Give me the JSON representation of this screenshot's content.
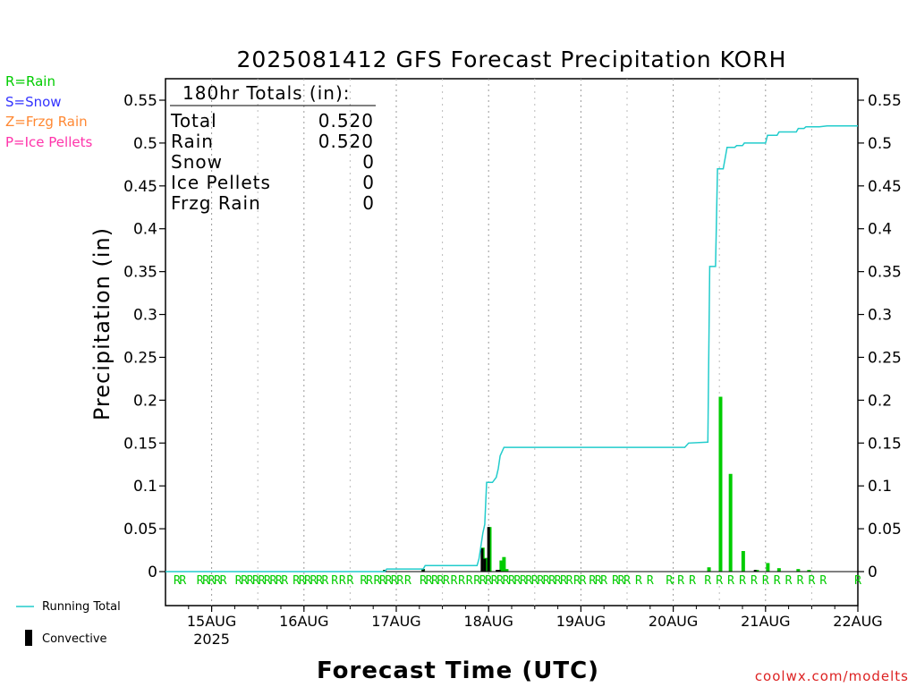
{
  "chart_data": {
    "type": "bar",
    "title": "2025081412 GFS Forecast Precipitation KORH",
    "ylabel": "Precipitation (in)",
    "xlabel": "Forecast Time (UTC)",
    "ylim": [
      0,
      0.57
    ],
    "y_ticks": [
      "0",
      "0.05",
      "0.1",
      "0.15",
      "0.2",
      "0.25",
      "0.3",
      "0.35",
      "0.4",
      "0.45",
      "0.5",
      "0.55"
    ],
    "x_ticks": [
      {
        "label": "15AUG",
        "sub": "2025",
        "hour": 12
      },
      {
        "label": "16AUG",
        "sub": "",
        "hour": 36
      },
      {
        "label": "17AUG",
        "sub": "",
        "hour": 60
      },
      {
        "label": "18AUG",
        "sub": "",
        "hour": 84
      },
      {
        "label": "19AUG",
        "sub": "",
        "hour": 108
      },
      {
        "label": "20AUG",
        "sub": "",
        "hour": 132
      },
      {
        "label": "21AUG",
        "sub": "",
        "hour": 156
      },
      {
        "label": "22AUG",
        "sub": "",
        "hour": 180
      }
    ],
    "xlim_hours": [
      0,
      180
    ],
    "grid": "vertical dotted at day boundaries",
    "legend": {
      "ptypes": [
        {
          "label": "R=Rain",
          "color": "#00cc00"
        },
        {
          "label": "S=Snow",
          "color": "#3333ff"
        },
        {
          "label": "Z=Frzg Rain",
          "color": "#ff8833"
        },
        {
          "label": "P=Ice Pellets",
          "color": "#ff33aa"
        }
      ],
      "running_total_label": "Running Total",
      "convective_label": "Convective"
    },
    "totals_box": {
      "heading": "180hr Totals (in):",
      "rows": [
        {
          "label": "Total",
          "value": "0.520"
        },
        {
          "label": "Rain",
          "value": "0.520"
        },
        {
          "label": "Snow",
          "value": "0"
        },
        {
          "label": "Ice Pellets",
          "value": "0"
        },
        {
          "label": "Frzg Rain",
          "value": "0"
        }
      ]
    },
    "series": [
      {
        "name": "Running Total",
        "color": "#22cccc",
        "points": [
          [
            0,
            0
          ],
          [
            57,
            0
          ],
          [
            57.5,
            0.003
          ],
          [
            67,
            0.003
          ],
          [
            67.5,
            0.007
          ],
          [
            81,
            0.007
          ],
          [
            81.5,
            0.015
          ],
          [
            82.5,
            0.045
          ],
          [
            83,
            0.055
          ],
          [
            83.5,
            0.104
          ],
          [
            85,
            0.104
          ],
          [
            86,
            0.11
          ],
          [
            86.5,
            0.12
          ],
          [
            87,
            0.135
          ],
          [
            88,
            0.145
          ],
          [
            135,
            0.145
          ],
          [
            136,
            0.15
          ],
          [
            141,
            0.151
          ],
          [
            141.5,
            0.356
          ],
          [
            143,
            0.356
          ],
          [
            143.5,
            0.47
          ],
          [
            145,
            0.47
          ],
          [
            146,
            0.495
          ],
          [
            148,
            0.495
          ],
          [
            148.5,
            0.497
          ],
          [
            150,
            0.497
          ],
          [
            150.5,
            0.5
          ],
          [
            156,
            0.5
          ],
          [
            156.5,
            0.509
          ],
          [
            159,
            0.509
          ],
          [
            159.5,
            0.513
          ],
          [
            164,
            0.513
          ],
          [
            164.5,
            0.517
          ],
          [
            166,
            0.517
          ],
          [
            166.5,
            0.519
          ],
          [
            170,
            0.519
          ],
          [
            172,
            0.52
          ],
          [
            180,
            0.52
          ]
        ]
      },
      {
        "name": "Rain",
        "color": "#00cc00",
        "bars": [
          [
            57,
            0.002
          ],
          [
            67,
            0.003
          ],
          [
            82.5,
            0.028
          ],
          [
            83.3,
            0.016
          ],
          [
            84.3,
            0.052
          ],
          [
            87.3,
            0.013
          ],
          [
            88,
            0.017
          ],
          [
            88.7,
            0.003
          ],
          [
            141.3,
            0.005
          ],
          [
            144.3,
            0.204
          ],
          [
            146.9,
            0.114
          ],
          [
            150.2,
            0.024
          ],
          [
            153.8,
            0.002
          ],
          [
            156.6,
            0.01
          ],
          [
            159.5,
            0.004
          ],
          [
            164.5,
            0.003
          ],
          [
            167.3,
            0.002
          ]
        ]
      },
      {
        "name": "Convective",
        "color": "#000000",
        "bars": [
          [
            57,
            0.002
          ],
          [
            67,
            0.003
          ],
          [
            82.3,
            0.027
          ],
          [
            83,
            0.015
          ],
          [
            84,
            0.052
          ],
          [
            86.2,
            0.002
          ],
          [
            86.8,
            0.002
          ],
          [
            153.3,
            0.002
          ]
        ]
      }
    ],
    "ptype_markers": {
      "color": "#00cc00",
      "hours": [
        3,
        4.5,
        9,
        10.5,
        12,
        13.5,
        15,
        19,
        20.5,
        22,
        23.5,
        25,
        26.5,
        28,
        29.5,
        31,
        34,
        35.5,
        37,
        38.5,
        40,
        41.5,
        44,
        46,
        48,
        51.5,
        53,
        55,
        56.5,
        58,
        59.5,
        61,
        63,
        67,
        68.5,
        70,
        71.5,
        73,
        75,
        77,
        79,
        81,
        82.5,
        84,
        85.5,
        87,
        88.5,
        90,
        91.5,
        93,
        94.5,
        96,
        97.5,
        99,
        100.5,
        102,
        103.5,
        105,
        107,
        108.5,
        111,
        112.5,
        114,
        117,
        118.5,
        120,
        123,
        126,
        131,
        134,
        137,
        141,
        144,
        147,
        150,
        153,
        156,
        159,
        162,
        165,
        168,
        171,
        180
      ],
      "letter": "R"
    },
    "colon_marker_hours": [
      132
    ],
    "watermark": "coolwx.com/modelts"
  }
}
